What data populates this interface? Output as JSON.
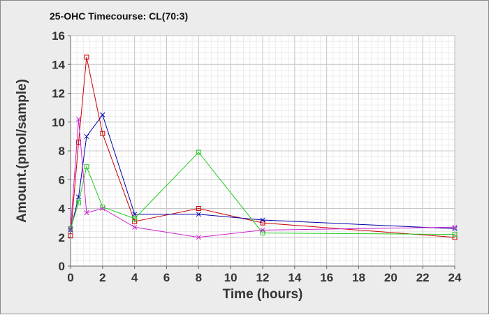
{
  "chart_data": {
    "type": "line",
    "title": "25-OHC Timecourse: CL(70:3)",
    "xlabel": "Time (hours)",
    "ylabel": "Amount.(pmol/sample)",
    "xlim": [
      0,
      24
    ],
    "ylim": [
      0,
      16
    ],
    "x_ticks": [
      0,
      2,
      4,
      6,
      8,
      10,
      12,
      14,
      16,
      18,
      20,
      22,
      24
    ],
    "y_ticks": [
      0,
      2,
      4,
      6,
      8,
      10,
      12,
      14,
      16
    ],
    "grid": true,
    "legend": "none",
    "series": [
      {
        "color": "#cc0000",
        "marker": "square",
        "points": [
          [
            0,
            2.1
          ],
          [
            0.5,
            8.6
          ],
          [
            1,
            14.5
          ],
          [
            2,
            9.2
          ],
          [
            4,
            3.1
          ],
          [
            8,
            4.0
          ],
          [
            12,
            3.0
          ],
          [
            24,
            2.0
          ]
        ]
      },
      {
        "color": "#0000aa",
        "marker": "x",
        "points": [
          [
            0,
            2.5
          ],
          [
            0.5,
            4.8
          ],
          [
            1,
            9.0
          ],
          [
            2,
            10.5
          ],
          [
            4,
            3.6
          ],
          [
            8,
            3.6
          ],
          [
            12,
            3.2
          ],
          [
            24,
            2.6
          ]
        ]
      },
      {
        "color": "#22cc22",
        "marker": "square",
        "points": [
          [
            0,
            2.6
          ],
          [
            0.5,
            4.4
          ],
          [
            1,
            6.9
          ],
          [
            2,
            4.1
          ],
          [
            4,
            3.3
          ],
          [
            8,
            7.9
          ],
          [
            12,
            2.3
          ],
          [
            24,
            2.2
          ]
        ]
      },
      {
        "color": "#cc22cc",
        "marker": "x",
        "points": [
          [
            0,
            2.6
          ],
          [
            0.5,
            10.2
          ],
          [
            1,
            3.7
          ],
          [
            2,
            4.0
          ],
          [
            4,
            2.7
          ],
          [
            8,
            2.0
          ],
          [
            12,
            2.5
          ],
          [
            24,
            2.7
          ]
        ]
      }
    ]
  }
}
